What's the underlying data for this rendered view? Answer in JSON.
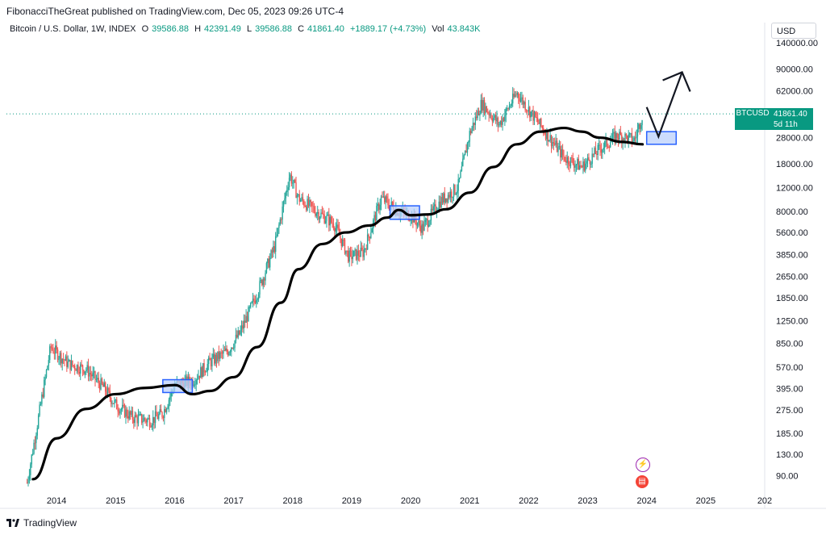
{
  "publisher_line": "FibonacciTheGreat published on TradingView.com, Dec 05, 2023 09:26 UTC-4",
  "legend": {
    "symbol": "Bitcoin / U.S. Dollar, 1W, INDEX",
    "o_label": "O",
    "o_value": "39586.88",
    "h_label": "H",
    "h_value": "42391.49",
    "l_label": "L",
    "l_value": "39586.88",
    "c_label": "C",
    "c_value": "41861.40",
    "change": "+1889.17 (+4.73%)",
    "vol_label": "Vol",
    "vol_value": "43.843K"
  },
  "currency": "USD",
  "last_price": {
    "symbol": "BTCUSD",
    "price": "41861.40",
    "countdown": "5d 11h"
  },
  "footer": {
    "brand": "TradingView"
  },
  "colors": {
    "up": "#26a69a",
    "down": "#ef5350",
    "ma": "#000000",
    "box_fill": "#bbd0fb",
    "box_stroke": "#2962ff"
  },
  "chart_data": {
    "type": "line",
    "scale": "log",
    "y_ticks": [
      "90.00",
      "130.00",
      "185.00",
      "275.00",
      "395.00",
      "570.00",
      "850.00",
      "1250.00",
      "1850.00",
      "2650.00",
      "3850.00",
      "5600.00",
      "8000.00",
      "12000.00",
      "18000.00",
      "28000.00",
      "41861.40",
      "62000.00",
      "90000.00",
      "140000.00"
    ],
    "x_ticks": [
      "2014",
      "2015",
      "2016",
      "2017",
      "2018",
      "2019",
      "2020",
      "2021",
      "2022",
      "2023",
      "2024",
      "2025",
      "202"
    ],
    "series": [
      {
        "x": [
          2013.5,
          2013.9,
          2014.2,
          2014.5,
          2014.8,
          2015.0,
          2015.3,
          2015.6,
          2015.8,
          2016.0,
          2016.3,
          2016.6,
          2016.9,
          2017.1,
          2017.4,
          2017.7,
          2017.95,
          2018.1,
          2018.4,
          2018.7,
          2018.95,
          2019.2,
          2019.5,
          2019.8,
          2020.0,
          2020.2,
          2020.5,
          2020.8,
          2021.0,
          2021.2,
          2021.5,
          2021.8,
          2022.0,
          2022.3,
          2022.6,
          2022.9,
          2023.2,
          2023.5,
          2023.8,
          2023.93
        ],
        "values": [
          80,
          800,
          600,
          550,
          400,
          300,
          240,
          230,
          260,
          420,
          450,
          620,
          750,
          1000,
          2000,
          4500,
          15000,
          10000,
          8000,
          6500,
          3700,
          4000,
          10000,
          8000,
          7500,
          6000,
          9500,
          12000,
          30000,
          50000,
          35000,
          60000,
          45000,
          30000,
          20000,
          17000,
          23000,
          29000,
          27000,
          41861
        ]
      },
      {
        "x": [
          2013.6,
          2014.0,
          2014.5,
          2015.0,
          2015.5,
          2016.0,
          2016.3,
          2016.6,
          2017.0,
          2017.4,
          2017.8,
          2018.1,
          2018.5,
          2018.9,
          2019.3,
          2019.6,
          2019.8,
          2020.0,
          2020.3,
          2020.6,
          2021.0,
          2021.4,
          2021.8,
          2022.2,
          2022.6,
          2022.9,
          2023.2,
          2023.6,
          2023.93
        ],
        "values": [
          85,
          170,
          280,
          360,
          400,
          420,
          360,
          380,
          480,
          800,
          1700,
          3000,
          4600,
          5600,
          6300,
          7200,
          8200,
          7500,
          7600,
          8300,
          11000,
          17000,
          25000,
          31000,
          33000,
          31000,
          28000,
          26000,
          25000
        ]
      }
    ],
    "projection": {
      "x": [
        2024.0,
        2024.2,
        2024.6
      ],
      "values": [
        47000,
        28500,
        85000
      ]
    },
    "boxes": [
      {
        "x": [
          2015.8,
          2016.3
        ],
        "y": [
          370,
          460
        ]
      },
      {
        "x": [
          2019.65,
          2020.15
        ],
        "y": [
          7000,
          8800
        ]
      },
      {
        "x": [
          2024.0,
          2024.5
        ],
        "y": [
          25000,
          31000
        ]
      }
    ],
    "last_price_line": 41861.4
  }
}
